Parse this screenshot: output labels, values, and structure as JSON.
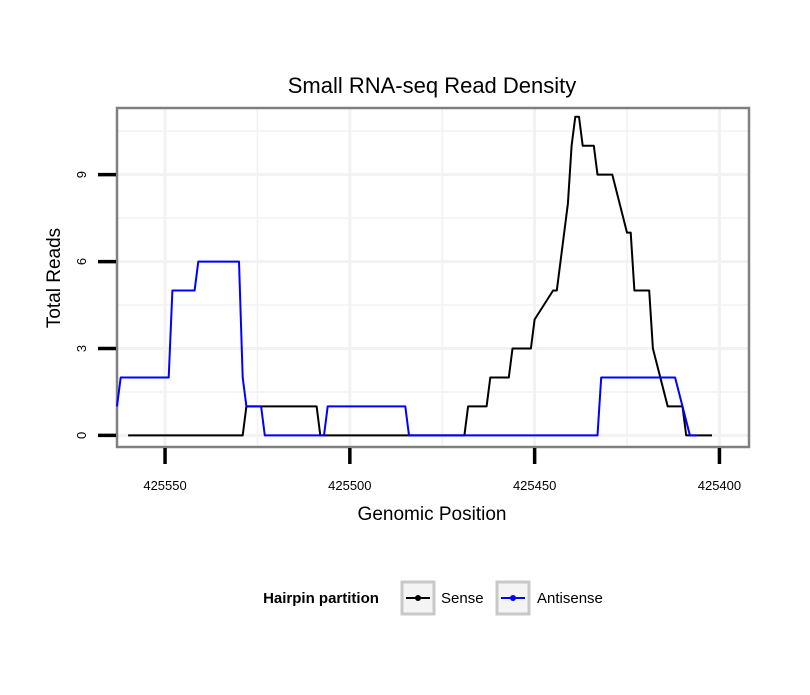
{
  "chart_data": {
    "type": "line",
    "title": "Small RNA-seq Read Density",
    "xlabel": "Genomic Position",
    "ylabel": "Total Reads",
    "x_reversed": true,
    "xlim": [
      425563,
      425392
    ],
    "ylim": [
      -0.4,
      11.3
    ],
    "x_ticks": [
      425550,
      425500,
      425450,
      425400
    ],
    "x_tick_labels": [
      "425550",
      "425500",
      "425450",
      "425400"
    ],
    "y_ticks": [
      0,
      3,
      6,
      9
    ],
    "y_tick_labels": [
      "0",
      "3",
      "6",
      "9"
    ],
    "grid": true,
    "legend": {
      "title": "Hairpin partition",
      "position": "bottom",
      "entries": [
        {
          "name": "Sense",
          "color": "#000000"
        },
        {
          "name": "Antisense",
          "color": "#0000ff"
        }
      ]
    },
    "series": [
      {
        "name": "Sense",
        "color": "#000000",
        "x": [
          425560,
          425529,
          425528,
          425509,
          425508,
          425497,
          425469,
          425468,
          425463,
          425462,
          425457,
          425456,
          425455,
          425451,
          425450,
          425445,
          425444,
          425441,
          425440,
          425439,
          425438,
          425437,
          425434,
          425433,
          425432,
          425430,
          425429,
          425425,
          425424,
          425423,
          425422,
          425419,
          425418,
          425414,
          425413,
          425410,
          425409,
          425408,
          425406,
          425405,
          425402
        ],
        "values": [
          0,
          0,
          1,
          1,
          0,
          0,
          0,
          1,
          1,
          2,
          2,
          3,
          3,
          3,
          4,
          5,
          5,
          8,
          10,
          11,
          11,
          10,
          10,
          9,
          9,
          9,
          9,
          7,
          7,
          5,
          5,
          5,
          3,
          1,
          1,
          1,
          0,
          0,
          0,
          0,
          0
        ]
      },
      {
        "name": "Antisense",
        "color": "#0000ff",
        "x": [
          425563,
          425562,
          425549,
          425548,
          425542,
          425541,
          425530,
          425529,
          425528,
          425524,
          425523,
          425507,
          425506,
          425485,
          425484,
          425464,
          425463,
          425433,
          425432,
          425412,
          425410,
          425408,
          425406
        ],
        "values": [
          1,
          2,
          2,
          5,
          5,
          6,
          6,
          2,
          1,
          1,
          0,
          0,
          1,
          1,
          0,
          0,
          0,
          0,
          2,
          2,
          1,
          0,
          0
        ]
      }
    ]
  }
}
